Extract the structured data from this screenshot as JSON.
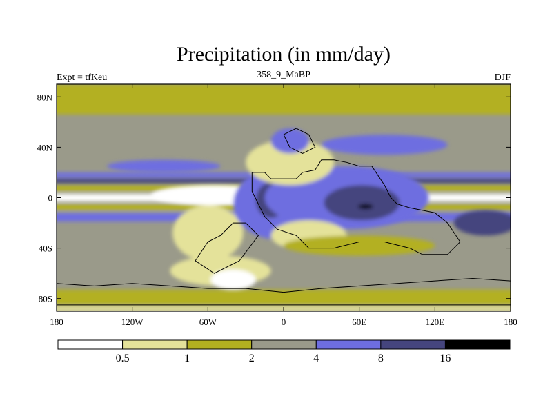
{
  "chart_data": {
    "type": "heatmap",
    "title": "Precipitation (in mm/day)",
    "left_label": "Expt = tfKeu",
    "center_label": "358_9_MaBP",
    "right_label": "DJF",
    "x_ticks": [
      "180",
      "120W",
      "60W",
      "0",
      "60E",
      "120E",
      "180"
    ],
    "y_ticks": [
      "80N",
      "40N",
      "0",
      "40S",
      "80S"
    ],
    "xlim": [
      -180,
      180
    ],
    "ylim": [
      -90,
      90
    ],
    "colorbar": {
      "levels": [
        "0.5",
        "1",
        "2",
        "4",
        "8",
        "16"
      ],
      "colors": [
        "#ffffff",
        "#e4e29a",
        "#b3b020",
        "#9a9a8a",
        "#6e6ee0",
        "#45457e",
        "#000000"
      ]
    },
    "background_level_color": "#9a9a8a",
    "bands": [
      {
        "lat": [
          66,
          90
        ],
        "color": "#b3b020"
      },
      {
        "lat": [
          16,
          20
        ],
        "color": "#6e6ee0"
      },
      {
        "lat": [
          11,
          15
        ],
        "color": "#45457e"
      },
      {
        "lat": [
          5,
          10
        ],
        "color": "#b3b020"
      },
      {
        "lat": [
          -3,
          3
        ],
        "color": "#ffffff"
      },
      {
        "lat": [
          -10,
          -5
        ],
        "color": "#b3b020"
      },
      {
        "lat": [
          -19,
          -12
        ],
        "color": "#6e6ee0"
      },
      {
        "lat": [
          -85,
          -73
        ],
        "color": "#b3b020"
      },
      {
        "lat": [
          -90,
          -86
        ],
        "color": "#e4e29a"
      }
    ],
    "patches": [
      {
        "lon": -55,
        "lat": 2,
        "rlon": 50,
        "rlat": 8,
        "color": "#ffffff"
      },
      {
        "lon": -60,
        "lat": -28,
        "rlon": 28,
        "rlat": 22,
        "color": "#e4e29a"
      },
      {
        "lon": -50,
        "lat": -58,
        "rlon": 40,
        "rlat": 12,
        "color": "#e4e29a"
      },
      {
        "lon": -40,
        "lat": -65,
        "rlon": 18,
        "rlat": 8,
        "color": "#ffffff"
      },
      {
        "lon": -5,
        "lat": -5,
        "rlon": 35,
        "rlat": 28,
        "color": "#6e6ee0"
      },
      {
        "lon": -10,
        "lat": -2,
        "rlon": 12,
        "rlat": 14,
        "color": "#45457e"
      },
      {
        "lon": 50,
        "lat": 0,
        "rlon": 65,
        "rlat": 25,
        "color": "#6e6ee0"
      },
      {
        "lon": 62,
        "lat": -4,
        "rlon": 30,
        "rlat": 14,
        "color": "#45457e"
      },
      {
        "lon": 65,
        "lat": -7,
        "rlon": 6,
        "rlat": 2,
        "color": "#000000"
      },
      {
        "lon": 5,
        "lat": 28,
        "rlon": 35,
        "rlat": 18,
        "color": "#e4e29a"
      },
      {
        "lon": 5,
        "lat": 45,
        "rlon": 15,
        "rlat": 10,
        "color": "#6e6ee0"
      },
      {
        "lon": 80,
        "lat": 42,
        "rlon": 50,
        "rlat": 8,
        "color": "#6e6ee0"
      },
      {
        "lon": -95,
        "lat": 25,
        "rlon": 45,
        "rlat": 5,
        "color": "#6e6ee0"
      },
      {
        "lon": 160,
        "lat": -20,
        "rlon": 25,
        "rlat": 10,
        "color": "#45457e"
      },
      {
        "lon": 20,
        "lat": -30,
        "rlon": 30,
        "rlat": 12,
        "color": "#e4e29a"
      },
      {
        "lon": 60,
        "lat": -38,
        "rlon": 60,
        "rlat": 8,
        "color": "#b3b020"
      }
    ],
    "land_outlines": [
      [
        [
          -25,
          20
        ],
        [
          -15,
          20
        ],
        [
          -10,
          15
        ],
        [
          10,
          15
        ],
        [
          15,
          20
        ],
        [
          25,
          22
        ],
        [
          30,
          30
        ],
        [
          40,
          30
        ],
        [
          50,
          28
        ],
        [
          60,
          25
        ],
        [
          70,
          25
        ],
        [
          80,
          10
        ],
        [
          85,
          0
        ],
        [
          90,
          -5
        ],
        [
          100,
          -8
        ],
        [
          110,
          -10
        ],
        [
          120,
          -12
        ],
        [
          130,
          -20
        ],
        [
          140,
          -35
        ],
        [
          130,
          -45
        ],
        [
          110,
          -45
        ],
        [
          100,
          -40
        ],
        [
          80,
          -35
        ],
        [
          60,
          -35
        ],
        [
          40,
          -40
        ],
        [
          20,
          -40
        ],
        [
          10,
          -30
        ],
        [
          -5,
          -25
        ],
        [
          -15,
          -15
        ],
        [
          -20,
          -5
        ],
        [
          -25,
          5
        ],
        [
          -25,
          20
        ]
      ],
      [
        [
          0,
          50
        ],
        [
          10,
          55
        ],
        [
          20,
          50
        ],
        [
          25,
          40
        ],
        [
          15,
          35
        ],
        [
          5,
          40
        ],
        [
          0,
          50
        ]
      ],
      [
        [
          -70,
          -50
        ],
        [
          -60,
          -35
        ],
        [
          -50,
          -30
        ],
        [
          -40,
          -20
        ],
        [
          -30,
          -20
        ],
        [
          -20,
          -30
        ],
        [
          -35,
          -50
        ],
        [
          -55,
          -60
        ],
        [
          -70,
          -50
        ]
      ],
      [
        [
          -180,
          -68
        ],
        [
          -150,
          -70
        ],
        [
          -120,
          -68
        ],
        [
          -90,
          -70
        ],
        [
          -60,
          -72
        ],
        [
          -30,
          -72
        ],
        [
          0,
          -75
        ],
        [
          30,
          -72
        ],
        [
          60,
          -70
        ],
        [
          90,
          -68
        ],
        [
          120,
          -66
        ],
        [
          150,
          -64
        ],
        [
          180,
          -66
        ],
        [
          180,
          -85
        ],
        [
          -180,
          -85
        ],
        [
          -180,
          -68
        ]
      ]
    ]
  }
}
